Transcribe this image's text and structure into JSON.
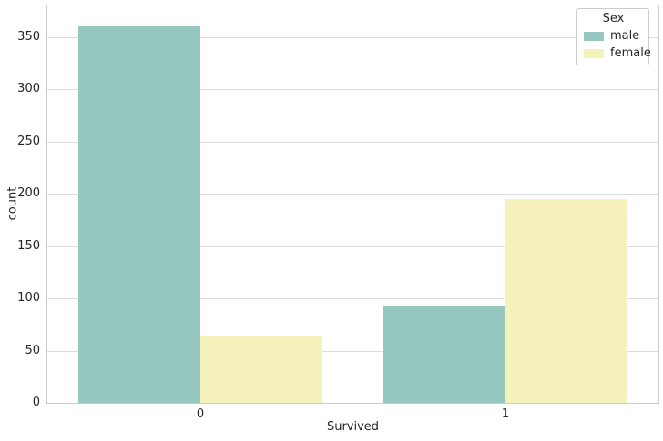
{
  "chart_data": {
    "type": "bar",
    "title": "",
    "xlabel": "Survived",
    "ylabel": "count",
    "categories": [
      "0",
      "1"
    ],
    "series": [
      {
        "name": "male",
        "color": "#96C8BF",
        "values": [
          360,
          93
        ]
      },
      {
        "name": "female",
        "color": "#F5F3BB",
        "values": [
          64,
          195
        ]
      }
    ],
    "yticks": [
      0,
      50,
      100,
      150,
      200,
      250,
      300,
      350
    ],
    "ylim": [
      0,
      380
    ],
    "grid": true,
    "legend": {
      "title": "Sex",
      "entries": [
        "male",
        "female"
      ],
      "position": "upper right"
    },
    "style": {
      "background": "#ffffff",
      "grid_color": "#dddddd",
      "spine_color": "#cccccc",
      "text_color": "#262626"
    }
  }
}
